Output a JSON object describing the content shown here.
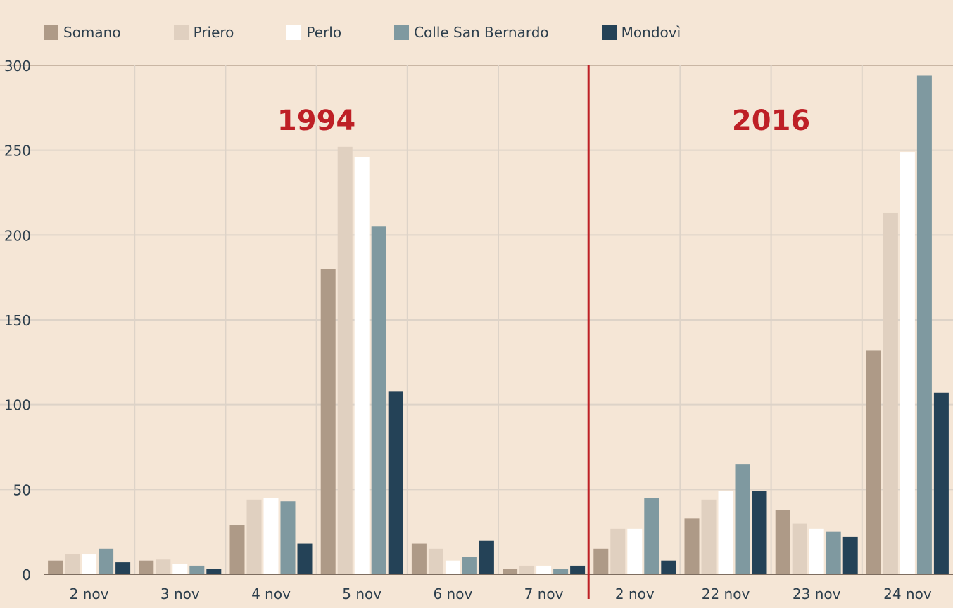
{
  "chart_data": {
    "type": "bar",
    "title": "",
    "xlabel": "",
    "ylabel": "",
    "ylim": [
      0,
      300
    ],
    "yticks": [
      0,
      50,
      100,
      150,
      200,
      250,
      300
    ],
    "grid": true,
    "legend_position": "top-left",
    "categories": [
      "2 nov",
      "3 nov",
      "4 nov",
      "5 nov",
      "6 nov",
      "7 nov",
      "2 nov",
      "22 nov",
      "23 nov",
      "24 nov"
    ],
    "annotations": [
      {
        "text": "1994",
        "group_span": [
          0,
          5
        ]
      },
      {
        "text": "2016",
        "group_span": [
          6,
          9
        ]
      }
    ],
    "divider_after_category": 5,
    "series": [
      {
        "name": "Somano",
        "color": "#ae9a87",
        "values": [
          8,
          8,
          29,
          180,
          18,
          3,
          15,
          33,
          38,
          132
        ]
      },
      {
        "name": "Priero",
        "color": "#e0d0c0",
        "values": [
          12,
          9,
          44,
          252,
          15,
          5,
          27,
          44,
          30,
          213
        ]
      },
      {
        "name": "Perlo",
        "color": "#ffffff",
        "values": [
          12,
          6,
          45,
          246,
          8,
          5,
          27,
          49,
          27,
          249
        ]
      },
      {
        "name": "Colle San Bernardo",
        "color": "#7f99a0",
        "values": [
          15,
          5,
          43,
          205,
          10,
          3,
          45,
          65,
          25,
          294
        ]
      },
      {
        "name": "Mondovì",
        "color": "#244257",
        "values": [
          7,
          3,
          18,
          108,
          20,
          5,
          8,
          49,
          22,
          107
        ]
      }
    ],
    "accent_color": "#be2026"
  }
}
